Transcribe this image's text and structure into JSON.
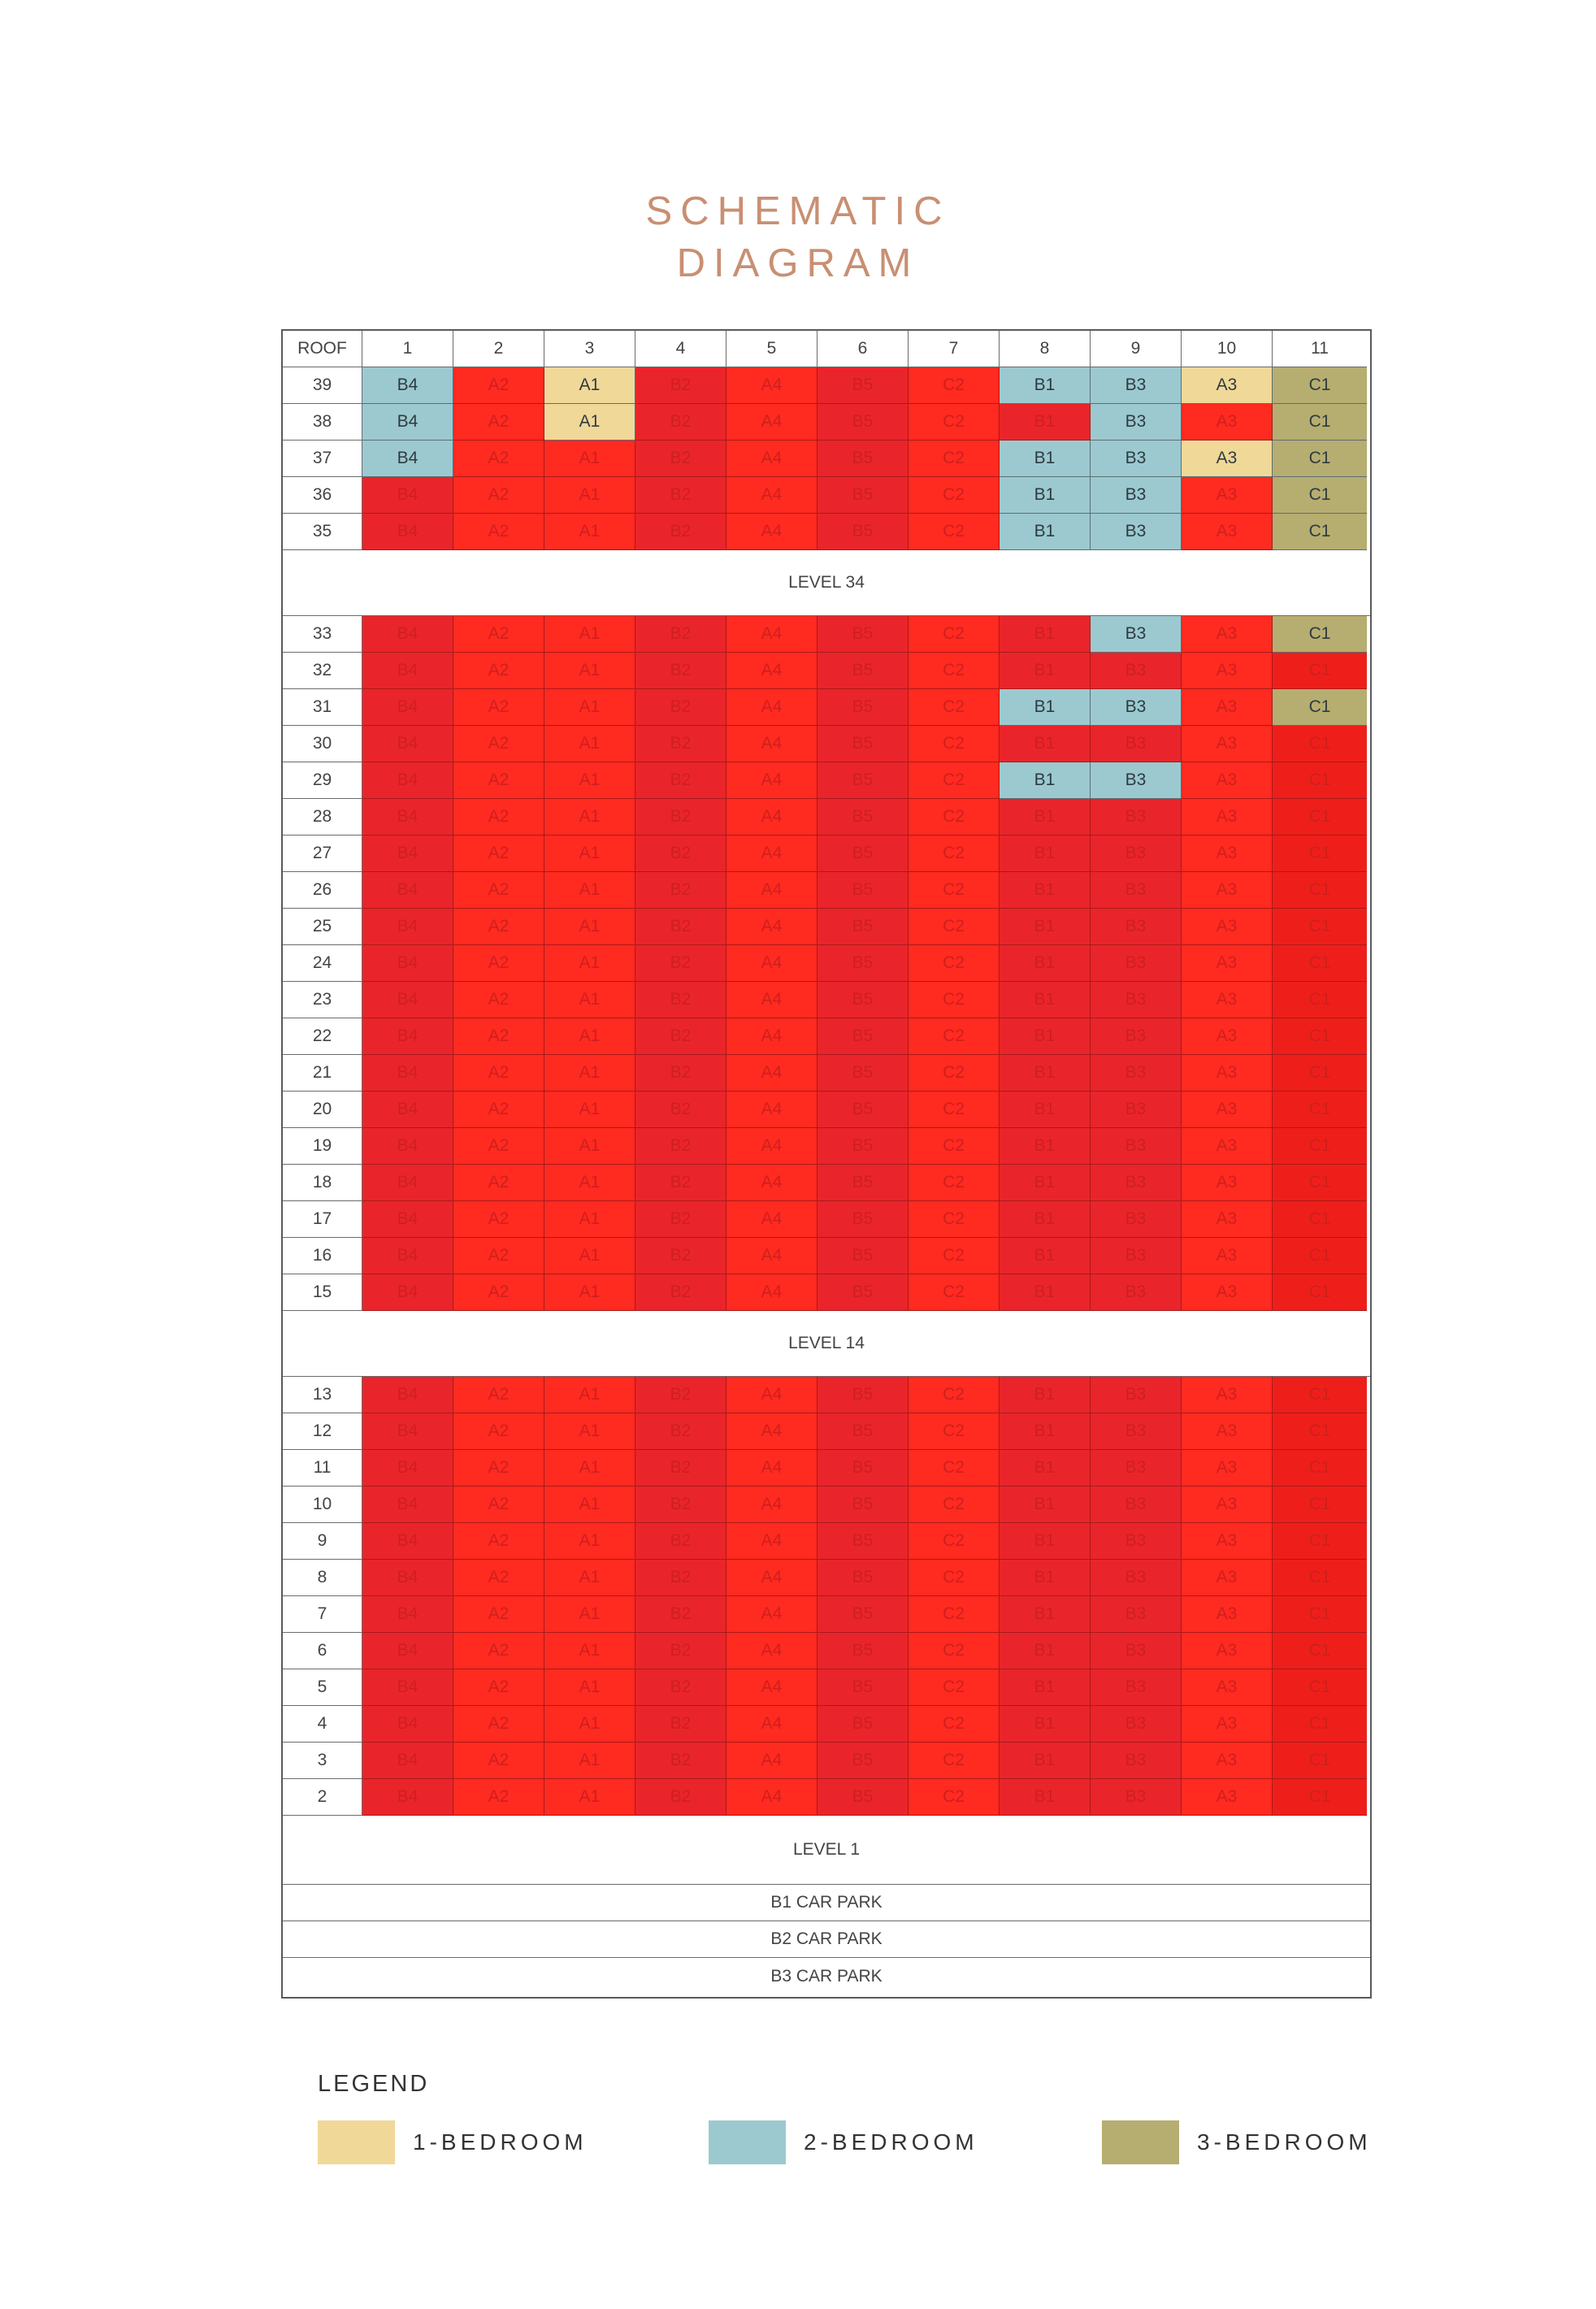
{
  "title": {
    "line1": "SCHEMATIC",
    "line2": "DIAGRAM"
  },
  "header": {
    "corner": "ROOF",
    "columns": [
      "1",
      "2",
      "3",
      "4",
      "5",
      "6",
      "7",
      "8",
      "9",
      "10",
      "11"
    ]
  },
  "unit_types": [
    "B4",
    "A2",
    "A1",
    "B2",
    "A4",
    "B5",
    "C2",
    "B1",
    "B3",
    "A3",
    "C1"
  ],
  "colors": {
    "sold_columns": [
      "#e9252b",
      "#ff2a20",
      "#ff2a20",
      "#e9252b",
      "#ff2a20",
      "#e9252b",
      "#ff2a20",
      "#e9252b",
      "#e9252b",
      "#ff2a20",
      "#ee1f1a"
    ],
    "bedroom_1": "#f0d898",
    "bedroom_2": "#9cc9d0",
    "bedroom_3": "#b6ad70",
    "title": "#c98f72"
  },
  "floors": [
    {
      "floor": "39",
      "available": [
        [
          1,
          2
        ],
        [
          3,
          1
        ],
        [
          8,
          2
        ],
        [
          9,
          2
        ],
        [
          10,
          1
        ],
        [
          11,
          3
        ]
      ]
    },
    {
      "floor": "38",
      "available": [
        [
          1,
          2
        ],
        [
          3,
          1
        ],
        [
          9,
          2
        ],
        [
          11,
          3
        ]
      ]
    },
    {
      "floor": "37",
      "available": [
        [
          1,
          2
        ],
        [
          8,
          2
        ],
        [
          9,
          2
        ],
        [
          10,
          1
        ],
        [
          11,
          3
        ]
      ]
    },
    {
      "floor": "36",
      "available": [
        [
          8,
          2
        ],
        [
          9,
          2
        ],
        [
          11,
          3
        ]
      ]
    },
    {
      "floor": "35",
      "available": [
        [
          8,
          2
        ],
        [
          9,
          2
        ],
        [
          11,
          3
        ]
      ]
    },
    {
      "band": "LEVEL 34"
    },
    {
      "floor": "33",
      "available": [
        [
          9,
          2
        ],
        [
          11,
          3
        ]
      ]
    },
    {
      "floor": "32",
      "available": []
    },
    {
      "floor": "31",
      "available": [
        [
          8,
          2
        ],
        [
          9,
          2
        ],
        [
          11,
          3
        ]
      ]
    },
    {
      "floor": "30",
      "available": []
    },
    {
      "floor": "29",
      "available": [
        [
          8,
          2
        ],
        [
          9,
          2
        ]
      ]
    },
    {
      "floor": "28",
      "available": []
    },
    {
      "floor": "27",
      "available": []
    },
    {
      "floor": "26",
      "available": []
    },
    {
      "floor": "25",
      "available": []
    },
    {
      "floor": "24",
      "available": []
    },
    {
      "floor": "23",
      "available": []
    },
    {
      "floor": "22",
      "available": []
    },
    {
      "floor": "21",
      "available": []
    },
    {
      "floor": "20",
      "available": []
    },
    {
      "floor": "19",
      "available": []
    },
    {
      "floor": "18",
      "available": []
    },
    {
      "floor": "17",
      "available": []
    },
    {
      "floor": "16",
      "available": []
    },
    {
      "floor": "15",
      "available": []
    },
    {
      "band": "LEVEL 14"
    },
    {
      "floor": "13",
      "available": []
    },
    {
      "floor": "12",
      "available": []
    },
    {
      "floor": "11",
      "available": []
    },
    {
      "floor": "10",
      "available": []
    },
    {
      "floor": "9",
      "available": []
    },
    {
      "floor": "8",
      "available": []
    },
    {
      "floor": "7",
      "available": []
    },
    {
      "floor": "6",
      "available": []
    },
    {
      "floor": "5",
      "available": []
    },
    {
      "floor": "4",
      "available": []
    },
    {
      "floor": "3",
      "available": []
    },
    {
      "floor": "2",
      "available": []
    },
    {
      "band": "LEVEL 1"
    },
    {
      "band": "B1 CAR PARK"
    },
    {
      "band": "B2 CAR PARK"
    },
    {
      "band": "B3 CAR PARK"
    }
  ],
  "legend": {
    "title": "LEGEND",
    "items": [
      {
        "label": "1-BEDROOM",
        "color": "#f0d898"
      },
      {
        "label": "2-BEDROOM",
        "color": "#9cc9d0"
      },
      {
        "label": "3-BEDROOM",
        "color": "#b6ad70"
      }
    ]
  }
}
